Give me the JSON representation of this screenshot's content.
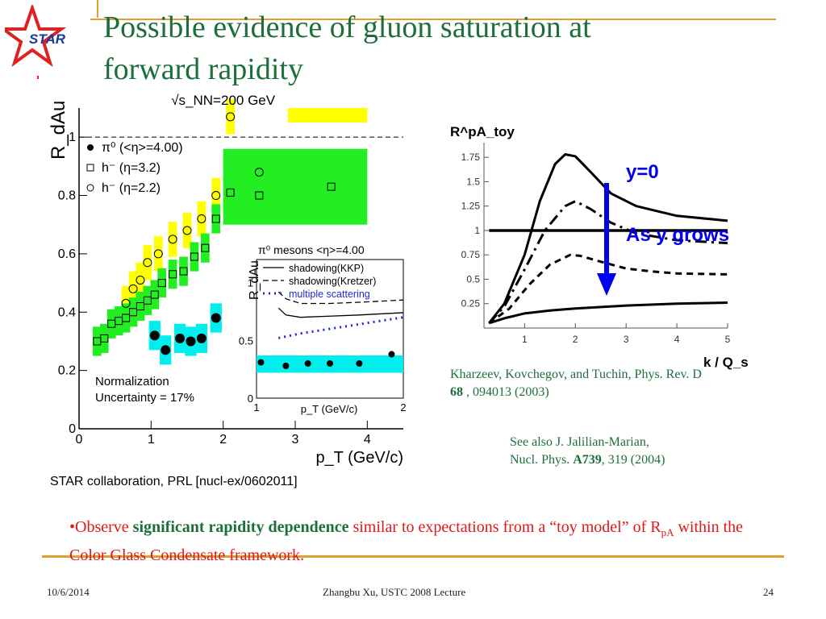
{
  "slide": {
    "title_line1": "Possible evidence of gluon saturation  at",
    "title_line2": "forward rapidity",
    "logo_text": "STAR",
    "star_citation": "STAR collaboration, PRL [nucl-ex/0602011]",
    "ref1_line1": "Kharzeev, Kovchegov, and Tuchin, Phys. Rev. D",
    "ref1_vol": "68",
    "ref1_rest": " , 094013 (2003)",
    "ref2_line1": "See also J. Jalilian-Marian,",
    "ref2_line2a": "Nucl. Phys. ",
    "ref2_vol": "A739",
    "ref2_line2b": ", 319 (2004)",
    "bullet_dot": "•",
    "bullet_a": "Observe ",
    "bullet_bold": "significant rapidity dependence",
    "bullet_b": " similar to expectations from a “toy model” of R",
    "bullet_sub": "pA",
    "bullet_c": " within the Color Glass Condensate framework.",
    "footer_date": "10/6/2014",
    "footer_center": "Zhangbu Xu, USTC 2008 Lecture",
    "footer_page": "24"
  },
  "colors": {
    "title_green": "#1e6e3c",
    "rule_gold": "#e0a030",
    "bullet_red": "#e01818",
    "band_yellow": "#ffff00",
    "band_green": "#22ee22",
    "band_cyan": "#00eeee",
    "arrow_blue": "#0000ee"
  },
  "chart_data": [
    {
      "type": "scatter",
      "ylabel": "R_dAu",
      "xlabel": "p_T (GeV/c)",
      "energy_label": "√s_NN=200 GeV",
      "xlim": [
        0,
        4.5
      ],
      "ylim": [
        0,
        1.1
      ],
      "x_ticks": [
        "0",
        "1",
        "2",
        "3",
        "4"
      ],
      "y_ticks": [
        "0",
        "0.2",
        "0.4",
        "0.6",
        "0.8",
        "1"
      ],
      "reference_line": 1.0,
      "annotation_line1": "Normalization",
      "annotation_line2": "Uncertainty = 17%",
      "series": [
        {
          "name": "π⁰ (<η>=4.00)",
          "marker": "filled-circle",
          "x": [
            1.05,
            1.2,
            1.4,
            1.55,
            1.7,
            1.9
          ],
          "y": [
            0.32,
            0.27,
            0.31,
            0.3,
            0.31,
            0.38
          ]
        },
        {
          "name": "h⁻ (η=3.2)",
          "marker": "open-square",
          "x": [
            0.25,
            0.35,
            0.45,
            0.55,
            0.65,
            0.75,
            0.85,
            0.95,
            1.05,
            1.15,
            1.3,
            1.45,
            1.6,
            1.75,
            1.9,
            2.1,
            2.5,
            3.5
          ],
          "y": [
            0.3,
            0.31,
            0.36,
            0.37,
            0.38,
            0.4,
            0.42,
            0.44,
            0.46,
            0.5,
            0.53,
            0.54,
            0.59,
            0.62,
            0.72,
            0.81,
            0.8,
            0.83
          ]
        },
        {
          "name": "h⁻ (η=2.2)",
          "marker": "open-circle",
          "x": [
            0.65,
            0.75,
            0.85,
            0.95,
            1.1,
            1.3,
            1.5,
            1.7,
            1.9,
            2.1,
            2.5
          ],
          "y": [
            0.43,
            0.48,
            0.51,
            0.57,
            0.6,
            0.65,
            0.68,
            0.72,
            0.8,
            1.07,
            0.88
          ]
        }
      ],
      "inset": {
        "title": "π⁰ mesons <η>=4.00",
        "ylabel": "R_dAu",
        "xlabel": "p_T (GeV/c)",
        "xlim": [
          1,
          2
        ],
        "ylim": [
          0,
          1.2
        ],
        "x_ticks": [
          "1",
          "2"
        ],
        "y_ticks": [
          "0",
          "0.5",
          "1"
        ],
        "legend": [
          "shadowing(KKP)",
          "shadowing(Kretzer)",
          "multiple scattering"
        ],
        "points": {
          "x": [
            1.03,
            1.2,
            1.35,
            1.5,
            1.7,
            1.92
          ],
          "y": [
            0.31,
            0.28,
            0.3,
            0.3,
            0.3,
            0.38
          ]
        },
        "curves": [
          {
            "name": "shadowing(KKP)",
            "x": [
              1.15,
              1.2,
              1.3,
              1.5,
              1.7,
              2.0
            ],
            "y": [
              0.78,
              0.72,
              0.7,
              0.71,
              0.72,
              0.74
            ]
          },
          {
            "name": "shadowing(Kretzer)",
            "x": [
              1.15,
              1.2,
              1.3,
              1.5,
              1.7,
              2.0
            ],
            "y": [
              0.92,
              0.86,
              0.82,
              0.82,
              0.83,
              0.85
            ]
          },
          {
            "name": "multiple scattering",
            "x": [
              1.15,
              1.3,
              1.5,
              1.7,
              2.0
            ],
            "y": [
              0.52,
              0.56,
              0.6,
              0.64,
              0.7
            ]
          }
        ]
      }
    },
    {
      "type": "line",
      "ylabel": "R^pA_toy",
      "xlabel": "k / Q_s",
      "xlim": [
        0.2,
        5
      ],
      "ylim": [
        0,
        1.9
      ],
      "x_ticks": [
        "1",
        "2",
        "3",
        "4",
        "5"
      ],
      "y_ticks": [
        "0.25",
        "0.5",
        "0.75",
        "1",
        "1.25",
        "1.5",
        "1.75"
      ],
      "annotation_top": "y=0",
      "annotation_arrow": "As y grows",
      "series": [
        {
          "style": "flat-thick",
          "x": [
            0.3,
            5
          ],
          "y": [
            1.0,
            1.0
          ]
        },
        {
          "style": "solid",
          "x": [
            0.3,
            0.6,
            1.0,
            1.3,
            1.6,
            1.8,
            2.0,
            2.3,
            2.7,
            3.2,
            4.0,
            5.0
          ],
          "y": [
            0.05,
            0.25,
            0.75,
            1.3,
            1.68,
            1.78,
            1.76,
            1.6,
            1.38,
            1.25,
            1.15,
            1.1
          ]
        },
        {
          "style": "dash-dot",
          "x": [
            0.3,
            0.6,
            1.0,
            1.4,
            1.8,
            2.0,
            2.3,
            2.7,
            3.2,
            4.0,
            5.0
          ],
          "y": [
            0.05,
            0.22,
            0.6,
            1.0,
            1.25,
            1.3,
            1.22,
            1.08,
            0.97,
            0.9,
            0.87
          ]
        },
        {
          "style": "dashed",
          "x": [
            0.3,
            0.7,
            1.1,
            1.5,
            1.9,
            2.1,
            2.5,
            3.0,
            3.5,
            4.0,
            5.0
          ],
          "y": [
            0.05,
            0.2,
            0.45,
            0.65,
            0.75,
            0.74,
            0.68,
            0.61,
            0.58,
            0.56,
            0.55
          ]
        },
        {
          "style": "solid-low",
          "x": [
            0.3,
            0.6,
            1.0,
            1.5,
            2.0,
            3.0,
            4.0,
            5.0
          ],
          "y": [
            0.05,
            0.1,
            0.15,
            0.18,
            0.2,
            0.23,
            0.25,
            0.26
          ]
        }
      ]
    }
  ]
}
